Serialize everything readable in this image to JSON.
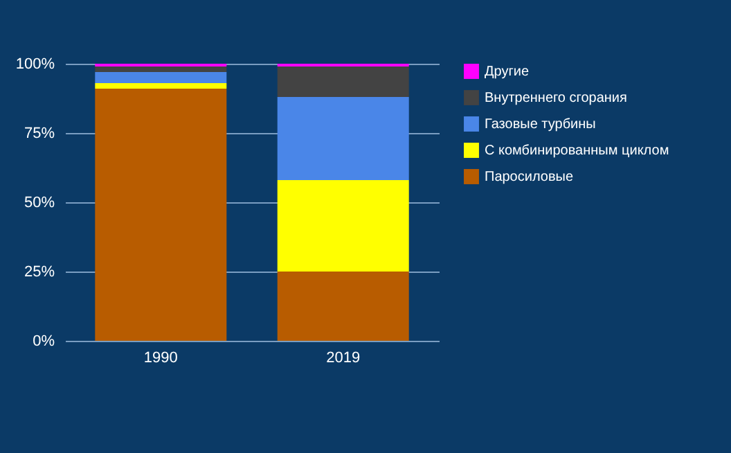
{
  "chart_data": {
    "type": "bar",
    "stacked": true,
    "categories": [
      "1990",
      "2019"
    ],
    "series": [
      {
        "name": "Паросиловые",
        "color": "#b85c00",
        "values": [
          91,
          25
        ]
      },
      {
        "name": "С комбинированным циклом",
        "color": "#ffff00",
        "values": [
          2,
          33
        ]
      },
      {
        "name": "Газовые турбины",
        "color": "#4a86e8",
        "values": [
          4,
          30
        ]
      },
      {
        "name": "Внутреннего сгорания",
        "color": "#434343",
        "values": [
          2,
          11
        ]
      },
      {
        "name": "Другие",
        "color": "#ff00ff",
        "values": [
          1,
          1
        ]
      }
    ],
    "ylim": [
      0,
      100
    ],
    "yticks": [
      {
        "value": 0,
        "label": "0%"
      },
      {
        "value": 25,
        "label": "25%"
      },
      {
        "value": 50,
        "label": "50%"
      },
      {
        "value": 75,
        "label": "75%"
      },
      {
        "value": 100,
        "label": "100%"
      }
    ],
    "grid": "y",
    "legend": "right"
  }
}
